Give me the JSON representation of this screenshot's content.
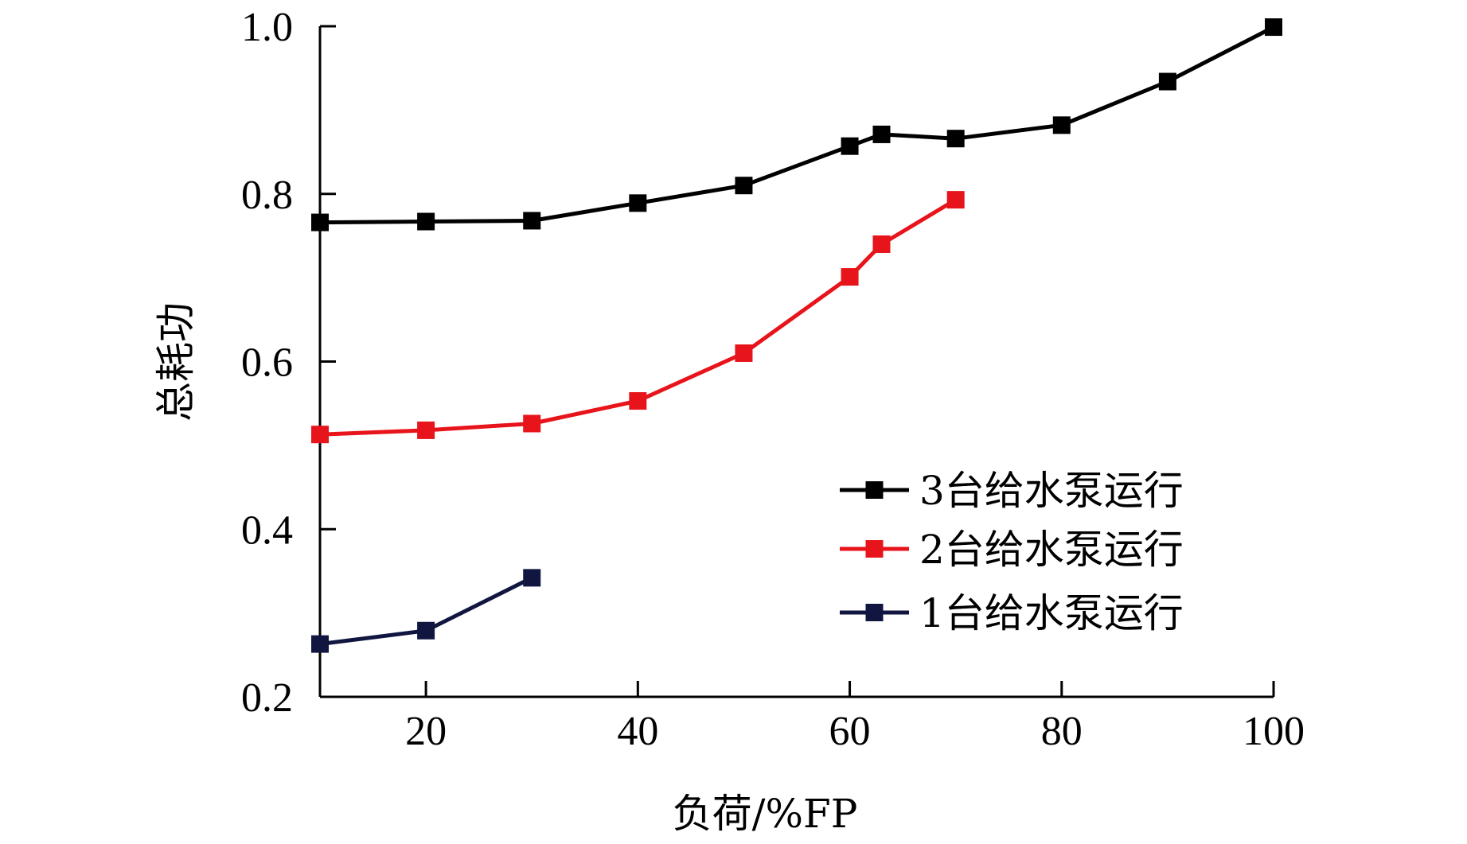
{
  "chart_data": {
    "type": "line",
    "title": "",
    "xlabel": "负荷/%FP",
    "ylabel": "总耗功",
    "xlim": [
      10,
      100
    ],
    "ylim": [
      0.2,
      1.0
    ],
    "xticks": [
      20,
      40,
      60,
      80,
      100
    ],
    "yticks": [
      0.2,
      0.4,
      0.6,
      0.8,
      1.0
    ],
    "ytick_labels": [
      "0.2",
      "0.4",
      "0.6",
      "0.8",
      "1.0"
    ],
    "xtick_labels": [
      "20",
      "40",
      "60",
      "80",
      "100"
    ],
    "grid": false,
    "legend_position": "bottom-right",
    "series": [
      {
        "name": "3台给水泵运行",
        "color": "#000000",
        "marker": "square",
        "x": [
          10,
          20,
          30,
          40,
          50,
          60,
          63,
          70,
          80,
          90,
          100
        ],
        "y": [
          0.766,
          0.767,
          0.768,
          0.789,
          0.81,
          0.857,
          0.871,
          0.866,
          0.882,
          0.934,
          0.999
        ]
      },
      {
        "name": "2台给水泵运行",
        "color": "#e8141b",
        "marker": "square",
        "x": [
          10,
          20,
          30,
          40,
          50,
          60,
          63,
          70
        ],
        "y": [
          0.513,
          0.518,
          0.526,
          0.553,
          0.61,
          0.701,
          0.74,
          0.793
        ]
      },
      {
        "name": "1台给水泵运行",
        "color": "#111640",
        "marker": "square",
        "x": [
          10,
          20,
          30
        ],
        "y": [
          0.263,
          0.279,
          0.342
        ]
      }
    ]
  }
}
